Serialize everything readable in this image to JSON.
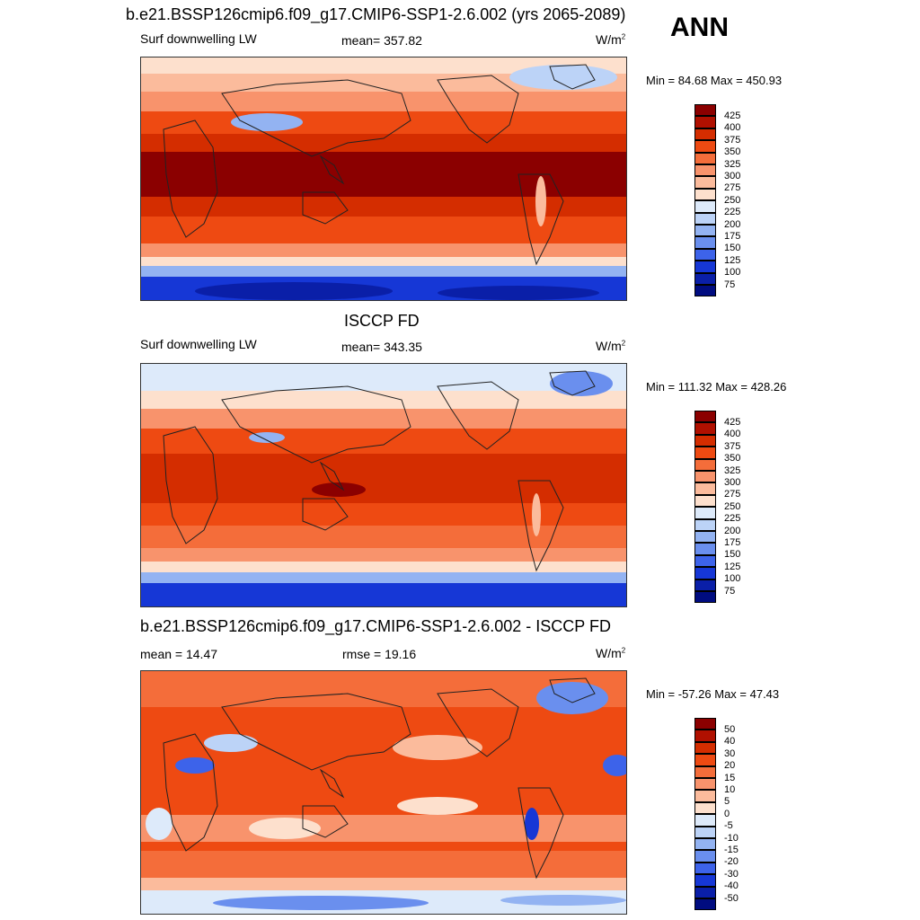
{
  "header": {
    "season": "ANN"
  },
  "panels": [
    {
      "title": "b.e21.BSSP126cmip6.f09_g17.CMIP6-SSP1-2.6.002 (yrs 2065-2089)",
      "left_label": "Surf downwelling LW",
      "center_label": "mean= 357.82",
      "units_base": "W/m",
      "units_exp": "2",
      "minmax": "Min =  84.68 Max = 450.93",
      "colorbar": {
        "ticks": [
          "425",
          "400",
          "375",
          "350",
          "325",
          "300",
          "275",
          "250",
          "225",
          "200",
          "175",
          "150",
          "125",
          "100",
          "75"
        ],
        "colors": [
          "#8b0000",
          "#b01000",
          "#d42d00",
          "#ee4a12",
          "#f46d3a",
          "#f8936c",
          "#fbbb9c",
          "#fde0cd",
          "#ddeafa",
          "#bcd3f7",
          "#93b3f2",
          "#6a8fee",
          "#3d63ea",
          "#1637d6",
          "#0a1fa8",
          "#000c80"
        ]
      }
    },
    {
      "title": "ISCCP FD",
      "left_label": "Surf downwelling LW",
      "center_label": "mean= 343.35",
      "units_base": "W/m",
      "units_exp": "2",
      "minmax": "Min = 111.32 Max = 428.26",
      "colorbar": {
        "ticks": [
          "425",
          "400",
          "375",
          "350",
          "325",
          "300",
          "275",
          "250",
          "225",
          "200",
          "175",
          "150",
          "125",
          "100",
          "75"
        ],
        "colors": [
          "#8b0000",
          "#b01000",
          "#d42d00",
          "#ee4a12",
          "#f46d3a",
          "#f8936c",
          "#fbbb9c",
          "#fde0cd",
          "#ddeafa",
          "#bcd3f7",
          "#93b3f2",
          "#6a8fee",
          "#3d63ea",
          "#1637d6",
          "#0a1fa8",
          "#000c80"
        ]
      }
    },
    {
      "title": "b.e21.BSSP126cmip6.f09_g17.CMIP6-SSP1-2.6.002 - ISCCP FD",
      "left_label": "mean =  14.47",
      "center_label": "rmse =  19.16",
      "units_base": "W/m",
      "units_exp": "2",
      "minmax": "Min = -57.26 Max =  47.43",
      "colorbar": {
        "ticks": [
          "50",
          "40",
          "30",
          "20",
          "15",
          "10",
          "5",
          "0",
          "-5",
          "-10",
          "-15",
          "-20",
          "-30",
          "-40",
          "-50"
        ],
        "colors": [
          "#8b0000",
          "#b01000",
          "#d42d00",
          "#ee4a12",
          "#f46d3a",
          "#f8936c",
          "#fbbb9c",
          "#fde0cd",
          "#ddeafa",
          "#bcd3f7",
          "#93b3f2",
          "#6a8fee",
          "#3d63ea",
          "#1637d6",
          "#0a1fa8",
          "#000c80"
        ]
      }
    }
  ]
}
